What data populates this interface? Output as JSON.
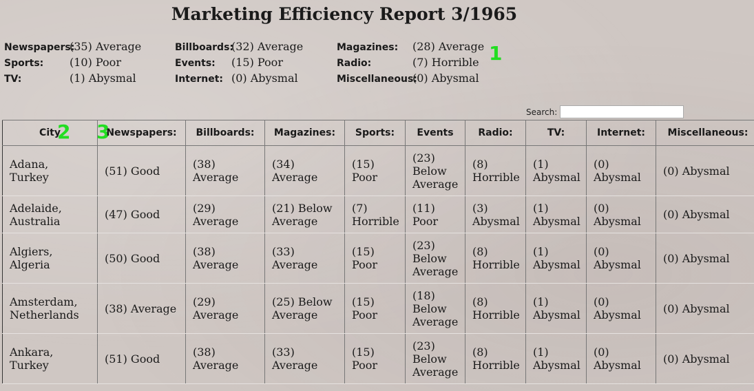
{
  "title": "Marketing Efficiency Report 3/1965",
  "summary": {
    "col1": [
      {
        "label": "Newspapers:",
        "value": "(35) Average"
      },
      {
        "label": "Sports:",
        "value": "(10) Poor"
      },
      {
        "label": "TV:",
        "value": "(1) Abysmal"
      }
    ],
    "col2": [
      {
        "label": "Billboards:",
        "value": "(32) Average"
      },
      {
        "label": "Events:",
        "value": "(15) Poor"
      },
      {
        "label": "Internet:",
        "value": "(0) Abysmal"
      }
    ],
    "col3": [
      {
        "label": "Magazines:",
        "value": "(28) Average"
      },
      {
        "label": "Radio:",
        "value": "(7) Horrible"
      },
      {
        "label": "Miscellaneous:",
        "value": "(0) Abysmal"
      }
    ]
  },
  "markers": {
    "m1": "1",
    "m2": "2",
    "m3": "3"
  },
  "search": {
    "label": "Search:",
    "value": ""
  },
  "table": {
    "headers": [
      "City",
      "Newspapers:",
      "Billboards:",
      "Magazines:",
      "Sports:",
      "Events",
      "Radio:",
      "TV:",
      "Internet:",
      "Miscellaneous:"
    ],
    "rows": [
      [
        "Adana, Turkey",
        "(51) Good",
        "(38) Average",
        "(34) Average",
        "(15) Poor",
        "(23) Below Average",
        "(8) Horrible",
        "(1) Abysmal",
        "(0) Abysmal",
        "(0) Abysmal"
      ],
      [
        "Adelaide, Australia",
        "(47) Good",
        "(29) Average",
        "(21) Below Average",
        "(7) Horrible",
        "(11) Poor",
        "(3) Abysmal",
        "(1) Abysmal",
        "(0) Abysmal",
        "(0) Abysmal"
      ],
      [
        "Algiers, Algeria",
        "(50) Good",
        "(38) Average",
        "(33) Average",
        "(15) Poor",
        "(23) Below Average",
        "(8) Horrible",
        "(1) Abysmal",
        "(0) Abysmal",
        "(0) Abysmal"
      ],
      [
        "Amsterdam, Netherlands",
        "(38) Average",
        "(29) Average",
        "(25) Below Average",
        "(15) Poor",
        "(18) Below Average",
        "(8) Horrible",
        "(1) Abysmal",
        "(0) Abysmal",
        "(0) Abysmal"
      ],
      [
        "Ankara, Turkey",
        "(51) Good",
        "(38) Average",
        "(33) Average",
        "(15) Poor",
        "(23) Below Average",
        "(8) Horrible",
        "(1) Abysmal",
        "(0) Abysmal",
        "(0) Abysmal"
      ]
    ]
  }
}
